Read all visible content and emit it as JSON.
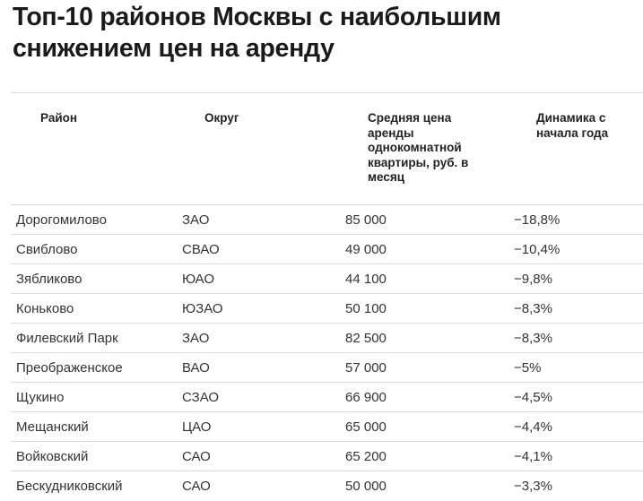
{
  "title": "Топ-10 районов Москвы с наибольшим снижением цен на аренду",
  "headers": [
    "Район",
    "Округ",
    "Средняя цена аренды однокомнатной квартиры, руб. в месяц",
    "Динамика с начала года"
  ],
  "rows": [
    [
      "Дорогомилово",
      "ЗАО",
      "85 000",
      "−18,8%"
    ],
    [
      "Свиблово",
      "СВАО",
      "49 000",
      "−10,4%"
    ],
    [
      "Зябликово",
      "ЮАО",
      "44 100",
      "−9,8%"
    ],
    [
      "Коньково",
      "ЮЗАО",
      "50 100",
      "−8,3%"
    ],
    [
      "Филевский Парк",
      "ЗАО",
      "82 500",
      "−8,3%"
    ],
    [
      "Преображенское",
      "ВАО",
      "57 000",
      "−5%"
    ],
    [
      "Щукино",
      "СЗАО",
      "66 900",
      "−4,5%"
    ],
    [
      "Мещанский",
      "ЦАО",
      "65 000",
      "−4,4%"
    ],
    [
      "Войковский",
      "САО",
      "65 200",
      "−4,1%"
    ],
    [
      "Бескудниковский",
      "САО",
      "50 000",
      "−3,3%"
    ]
  ]
}
